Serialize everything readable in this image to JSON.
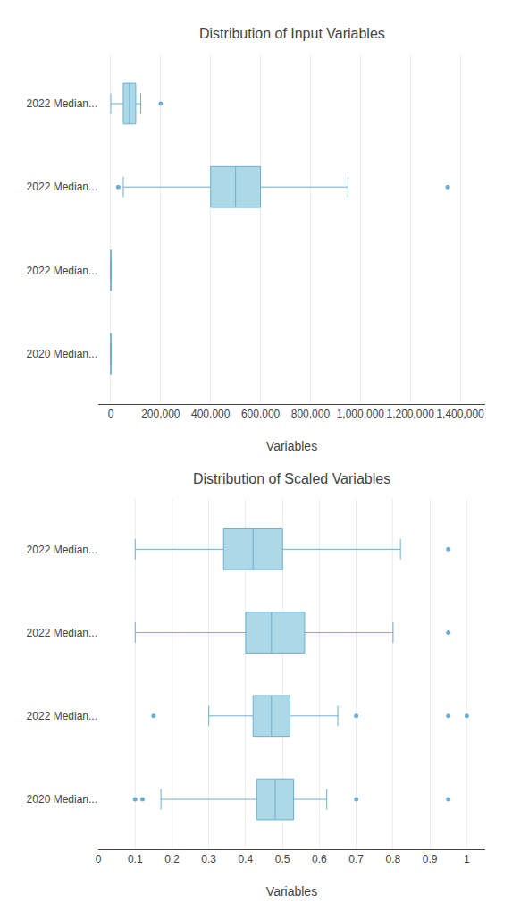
{
  "chart_data": [
    {
      "type": "box",
      "orientation": "horizontal",
      "title": "Distribution of Input Variables",
      "xlabel": "Variables",
      "categories": [
        "2020 Median...",
        "2022 Median...",
        "2022 Median...",
        "2022 Median..."
      ],
      "q1": [
        0,
        0,
        400000,
        50000
      ],
      "median": [
        0,
        0,
        500000,
        75000
      ],
      "q3": [
        0,
        0,
        600000,
        100000
      ],
      "whislo": [
        0,
        0,
        50000,
        0
      ],
      "whishi": [
        0,
        0,
        950000,
        120000
      ],
      "fliers": [
        [],
        [],
        [
          1350000,
          30000
        ],
        [
          200000
        ]
      ],
      "color": "#add8e6",
      "xlim": [
        -50000,
        1500000
      ],
      "xticks": [
        0,
        {
          "value": 200000,
          "label": "200,000"
        },
        {
          "value": 400000,
          "label": "400,000"
        },
        {
          "value": 600000,
          "label": "600,000"
        },
        {
          "value": 800000,
          "label": "800,000"
        },
        {
          "value": 1000000,
          "label": "1,000,000"
        },
        {
          "value": 1200000,
          "label": "1,200,000"
        },
        {
          "value": 1400000,
          "label": "1,400,000"
        }
      ],
      "grid": true
    },
    {
      "type": "box",
      "orientation": "horizontal",
      "title": "Distribution of Scaled Variables",
      "xlabel": "Variables",
      "categories": [
        "2020 Median...",
        "2022 Median...",
        "2022 Median...",
        "2022 Median..."
      ],
      "q1": [
        0.43,
        0.42,
        0.4,
        0.34
      ],
      "median": [
        0.48,
        0.47,
        0.47,
        0.42
      ],
      "q3": [
        0.53,
        0.52,
        0.56,
        0.5
      ],
      "whislo": [
        0.17,
        0.3,
        0.1,
        0.1
      ],
      "whishi": [
        0.62,
        0.65,
        0.8,
        0.82
      ],
      "fliers": [
        [
          0.7,
          0.95,
          0.1,
          0.12
        ],
        [
          0.7,
          0.95,
          1.0,
          0.15
        ],
        [
          0.95
        ],
        [
          0.95
        ]
      ],
      "color": "#add8e6",
      "xlim": [
        0,
        1.05
      ],
      "xticks": [
        0,
        0.1,
        0.2,
        0.3,
        0.4,
        0.5,
        0.6,
        0.7,
        0.8,
        0.9,
        1
      ],
      "grid": true
    }
  ]
}
